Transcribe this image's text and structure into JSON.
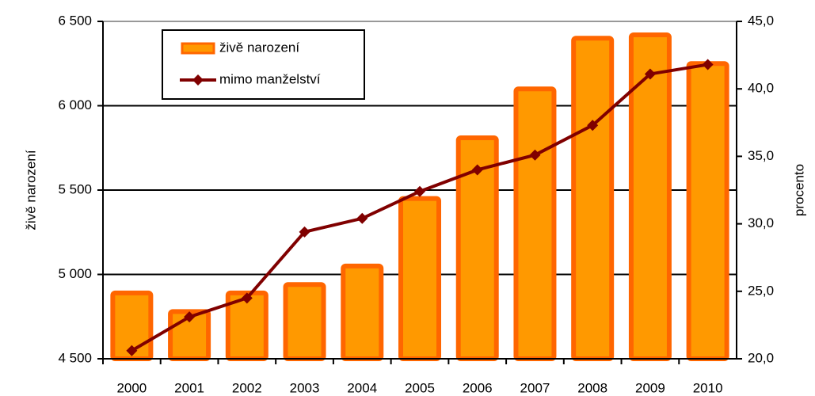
{
  "chart_data": {
    "type": "bar_line",
    "categories": [
      "2000",
      "2001",
      "2002",
      "2003",
      "2004",
      "2005",
      "2006",
      "2007",
      "2008",
      "2009",
      "2010"
    ],
    "series": [
      {
        "name": "živě narození",
        "type": "bar",
        "color": "#ff9900",
        "edge_color": "#ff6600",
        "axis": "y",
        "values": [
          4890,
          4780,
          4890,
          4940,
          5050,
          5450,
          5810,
          6100,
          6400,
          6420,
          6250
        ]
      },
      {
        "name": "mimo manželství",
        "type": "line",
        "color": "#800000",
        "axis": "y2",
        "values": [
          20.6,
          23.1,
          24.5,
          29.4,
          30.4,
          32.4,
          34.0,
          35.1,
          37.3,
          41.1,
          41.8
        ]
      }
    ],
    "ylabel": "živě narození",
    "y2label": "procento",
    "ylim": [
      4500,
      6500
    ],
    "yticks": [
      {
        "value": 4500,
        "label": "4 500"
      },
      {
        "value": 5000,
        "label": "5 000"
      },
      {
        "value": 5500,
        "label": "5 500"
      },
      {
        "value": 6000,
        "label": "6 000"
      },
      {
        "value": 6500,
        "label": "6 500"
      }
    ],
    "y2lim": [
      20,
      45
    ],
    "y2ticks": [
      {
        "value": 20,
        "label": "20,0"
      },
      {
        "value": 25,
        "label": "25,0"
      },
      {
        "value": 30,
        "label": "30,0"
      },
      {
        "value": 35,
        "label": "35,0"
      },
      {
        "value": 40,
        "label": "40,0"
      },
      {
        "value": 45,
        "label": "45,0"
      }
    ],
    "grid": true,
    "legend": "top-left"
  }
}
